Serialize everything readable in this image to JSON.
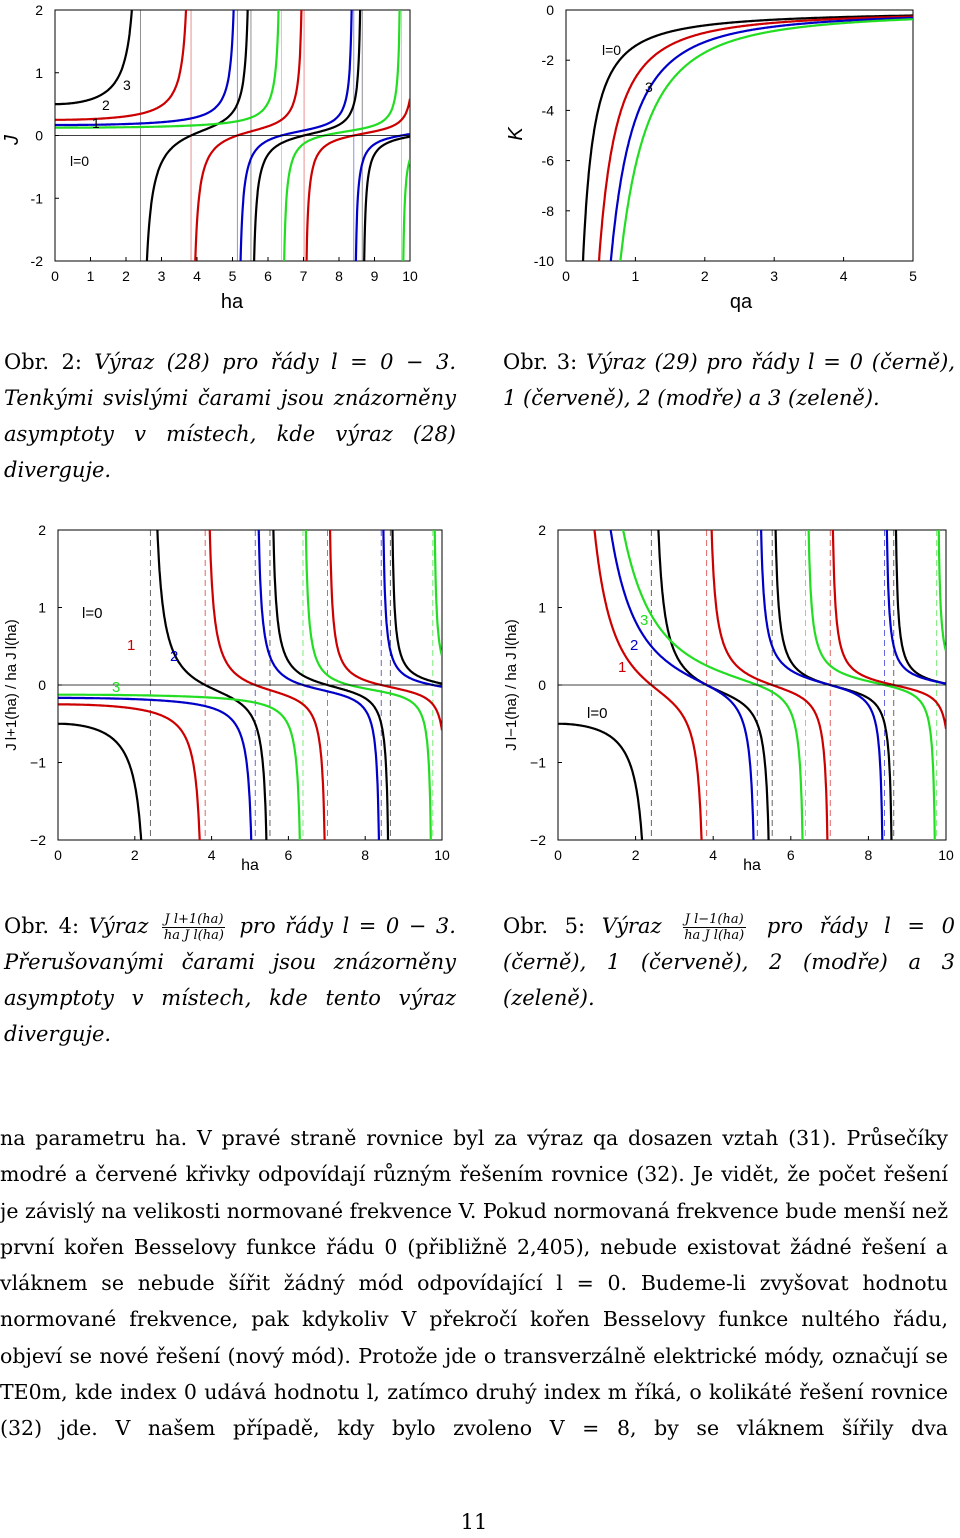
{
  "figures": {
    "fig2": {
      "ylabel": "J",
      "xlabel": "ha",
      "xticks": [
        "0",
        "1",
        "2",
        "3",
        "4",
        "5",
        "6",
        "7",
        "8",
        "9",
        "10"
      ],
      "yticks": [
        "-2",
        "-1",
        "0",
        "1",
        "2"
      ],
      "curve_labels": [
        "l=0",
        "1",
        "2",
        "3"
      ]
    },
    "fig3": {
      "ylabel": "K",
      "xlabel": "qa",
      "xticks": [
        "0",
        "1",
        "2",
        "3",
        "4",
        "5"
      ],
      "yticks": [
        "-10",
        "-8",
        "-6",
        "-4",
        "-2",
        "0"
      ],
      "curve_labels": [
        "l=0",
        "3"
      ]
    },
    "fig4": {
      "ylabel": "J l+1(ha) / ha J l(ha)",
      "xlabel": "ha",
      "xticks": [
        "0",
        "2",
        "4",
        "6",
        "8",
        "10"
      ],
      "yticks": [
        "−2",
        "−1",
        "0",
        "1",
        "2"
      ],
      "curve_labels": [
        "l=0",
        "1",
        "2",
        "3"
      ]
    },
    "fig5": {
      "ylabel": "J l−1(ha) / ha J l(ha)",
      "xlabel": "ha",
      "xticks": [
        "0",
        "2",
        "4",
        "6",
        "8",
        "10"
      ],
      "yticks": [
        "−2",
        "−1",
        "0",
        "1",
        "2"
      ],
      "curve_labels": [
        "l=0",
        "1",
        "2",
        "3"
      ]
    }
  },
  "chart_data": [
    {
      "id": "fig2",
      "type": "line",
      "xlabel": "ha",
      "ylabel": "J",
      "xlim": [
        0,
        10
      ],
      "ylim": [
        -2,
        2
      ],
      "series": [
        {
          "name": "l=0",
          "color": "#000000",
          "asymptotes": [
            2.405,
            5.52,
            8.654
          ]
        },
        {
          "name": "1",
          "color": "#cc0000",
          "asymptotes": [
            3.832,
            7.016
          ]
        },
        {
          "name": "2",
          "color": "#0000c8",
          "asymptotes": [
            5.136,
            8.417
          ]
        },
        {
          "name": "3",
          "color": "#22dd22",
          "asymptotes": [
            6.38,
            9.761
          ]
        }
      ]
    },
    {
      "id": "fig3",
      "type": "line",
      "xlabel": "qa",
      "ylabel": "K",
      "xlim": [
        0,
        5
      ],
      "ylim": [
        -10,
        0
      ],
      "series": [
        {
          "name": "l=0",
          "color": "#000000"
        },
        {
          "name": "1",
          "color": "#cc0000"
        },
        {
          "name": "2",
          "color": "#0000c8"
        },
        {
          "name": "3",
          "color": "#22dd22"
        }
      ]
    },
    {
      "id": "fig4",
      "type": "line",
      "xlabel": "ha",
      "ylabel": "J l+1(ha) / ha J l(ha)",
      "xlim": [
        0,
        10
      ],
      "ylim": [
        -2,
        2
      ],
      "series": [
        {
          "name": "l=0",
          "color": "#000000",
          "asymptotes": [
            2.405,
            5.52,
            8.654
          ]
        },
        {
          "name": "1",
          "color": "#cc0000",
          "asymptotes": [
            3.832,
            7.016
          ]
        },
        {
          "name": "2",
          "color": "#0000c8",
          "asymptotes": [
            5.136,
            8.417
          ]
        },
        {
          "name": "3",
          "color": "#22dd22",
          "asymptotes": [
            6.38,
            9.761
          ]
        }
      ]
    },
    {
      "id": "fig5",
      "type": "line",
      "xlabel": "ha",
      "ylabel": "J l−1(ha) / ha J l(ha)",
      "xlim": [
        0,
        10
      ],
      "ylim": [
        -2,
        2
      ],
      "series": [
        {
          "name": "l=0",
          "color": "#000000",
          "asymptotes": [
            2.405,
            5.52,
            8.654
          ]
        },
        {
          "name": "1",
          "color": "#cc0000",
          "asymptotes": [
            3.832,
            7.016
          ]
        },
        {
          "name": "2",
          "color": "#0000c8",
          "asymptotes": [
            5.136,
            8.417
          ]
        },
        {
          "name": "3",
          "color": "#22dd22",
          "asymptotes": [
            6.38,
            9.761
          ]
        }
      ]
    }
  ],
  "captions": {
    "fig2": {
      "lead": "Obr. 2:",
      "text": "Výraz (28) pro řády l = 0 − 3. Tenkými svislými čarami jsou znázorněny asymptoty v místech, kde výraz (28) diverguje."
    },
    "fig3": {
      "lead": "Obr. 3:",
      "text": "Výraz (29) pro řády l = 0 (černě), 1 (červeně), 2 (modře) a 3 (zeleně)."
    },
    "fig4": {
      "lead": "Obr. 4:",
      "pre": "Výraz",
      "num": "J l+1(ha)",
      "den": "ha J l(ha)",
      "post": "pro řády l = 0 − 3. Přerušovanými čarami jsou znázorněny asymptoty v místech, kde tento výraz diverguje."
    },
    "fig5": {
      "lead": "Obr. 5:",
      "pre": "Výraz",
      "num": "J l−1(ha)",
      "den": "ha J l(ha)",
      "post": "pro řády l = 0 (černě), 1 (červeně), 2 (modře) a 3 (zeleně)."
    }
  },
  "body_text": "na parametru ha. V pravé straně rovnice byl za výraz qa dosazen vztah (31). Průsečíky modré a červené křivky odpovídají různým řešením rovnice (32). Je vidět, že počet řešení je závislý na velikosti normované frekvence V. Pokud normovaná frekvence bude menší než první kořen Besselovy funkce řádu 0 (přibližně 2,405), nebude existovat žádné řešení a vláknem se nebude šířit žádný mód odpovídající l = 0. Budeme-li zvyšovat hodnotu normované frekvence, pak kdykoliv V překročí kořen Besselovy funkce nultého řádu, objeví se nové řešení (nový mód). Protože jde o transverzálně elektrické módy, označují se TE0m, kde index 0 udává hodnotu l, zatímco druhý index m říká, o kolikáté řešení rovnice (32) jde. V našem případě, kdy bylo zvoleno V = 8, by se vláknem šířily dva",
  "page_number": "11"
}
